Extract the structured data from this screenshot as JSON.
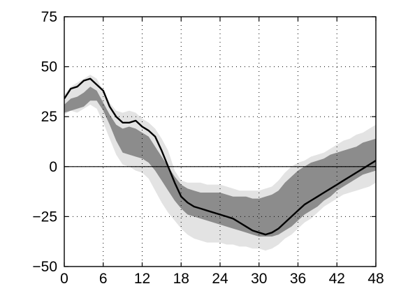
{
  "chart_data": {
    "type": "area",
    "title": "",
    "xlabel": "",
    "ylabel": "",
    "xlim": [
      0,
      48
    ],
    "ylim": [
      -50,
      75
    ],
    "xticks": [
      0,
      6,
      12,
      18,
      24,
      30,
      36,
      42,
      48
    ],
    "yticks": [
      75,
      50,
      25,
      0,
      -25,
      -50
    ],
    "xtick_labels": [
      "0",
      "6",
      "12",
      "18",
      "24",
      "30",
      "36",
      "42",
      "48"
    ],
    "ytick_labels": [
      "75",
      "50",
      "25",
      "0",
      "−25",
      "−50"
    ],
    "grid": "dotted",
    "zero_line": 0,
    "x": [
      0,
      1,
      2,
      3,
      4,
      5,
      6,
      7,
      8,
      9,
      10,
      11,
      12,
      13,
      14,
      15,
      16,
      17,
      18,
      19,
      20,
      21,
      22,
      23,
      24,
      25,
      26,
      27,
      28,
      29,
      30,
      31,
      32,
      33,
      34,
      35,
      36,
      37,
      38,
      39,
      40,
      41,
      42,
      43,
      44,
      45,
      46,
      47,
      48
    ],
    "series": [
      {
        "kind": "band",
        "values_low": [
          26,
          28,
          27,
          29,
          31,
          29,
          22,
          14,
          6,
          1,
          0,
          -2,
          -3,
          -6,
          -12,
          -18,
          -23,
          -27,
          -31,
          -34,
          -36,
          -37,
          -38,
          -38,
          -38,
          -39,
          -39,
          -40,
          -40,
          -41,
          -41,
          -42,
          -41,
          -39,
          -36,
          -34,
          -31,
          -28,
          -26,
          -23,
          -20,
          -18,
          -16,
          -14,
          -13,
          -12,
          -11,
          -10,
          -8
        ],
        "values_high": [
          36,
          40,
          42,
          44,
          46,
          44,
          38,
          32,
          28,
          27,
          28,
          27,
          24,
          22,
          19,
          14,
          8,
          -2,
          -7,
          -8,
          -8,
          -8,
          -9,
          -9,
          -9,
          -10,
          -11,
          -12,
          -12,
          -12,
          -12,
          -11,
          -10,
          -7,
          -3,
          0,
          2,
          3,
          5,
          6,
          7,
          9,
          11,
          13,
          14,
          16,
          17,
          19,
          21
        ],
        "color": "#e3e3e3"
      },
      {
        "kind": "band",
        "values_low": [
          27,
          28,
          29,
          30,
          33,
          33,
          28,
          21,
          13,
          7,
          6,
          5,
          4,
          2,
          -2,
          -7,
          -12,
          -17,
          -21,
          -24,
          -25,
          -26,
          -27,
          -28,
          -29,
          -30,
          -31,
          -32,
          -33,
          -34,
          -35,
          -35,
          -35,
          -34,
          -32,
          -30,
          -27,
          -24,
          -22,
          -20,
          -17,
          -15,
          -12,
          -10,
          -8,
          -6,
          -4,
          -3,
          -2
        ],
        "values_high": [
          31,
          34,
          35,
          37,
          40,
          38,
          32,
          26,
          21,
          19,
          20,
          19,
          17,
          15,
          10,
          5,
          0,
          -5,
          -9,
          -11,
          -12,
          -13,
          -13,
          -13,
          -13,
          -14,
          -15,
          -15,
          -15,
          -16,
          -16,
          -15,
          -14,
          -12,
          -8,
          -5,
          -2,
          0,
          2,
          3,
          4,
          6,
          7,
          8,
          9,
          10,
          12,
          13,
          14
        ],
        "color": "#8c8c8c"
      },
      {
        "kind": "line",
        "values": [
          34,
          39,
          40,
          43,
          44,
          41,
          38,
          30,
          25,
          22,
          22,
          23,
          20,
          18,
          15,
          8,
          0,
          -8,
          -15,
          -18,
          -20,
          -21,
          -22,
          -23,
          -24,
          -25,
          -26,
          -28,
          -30,
          -32,
          -33,
          -34,
          -33,
          -31,
          -28,
          -25,
          -22,
          -19,
          -17,
          -15,
          -13,
          -11,
          -9,
          -7,
          -5,
          -3,
          -1,
          1,
          3
        ],
        "color": "#000000"
      }
    ]
  }
}
